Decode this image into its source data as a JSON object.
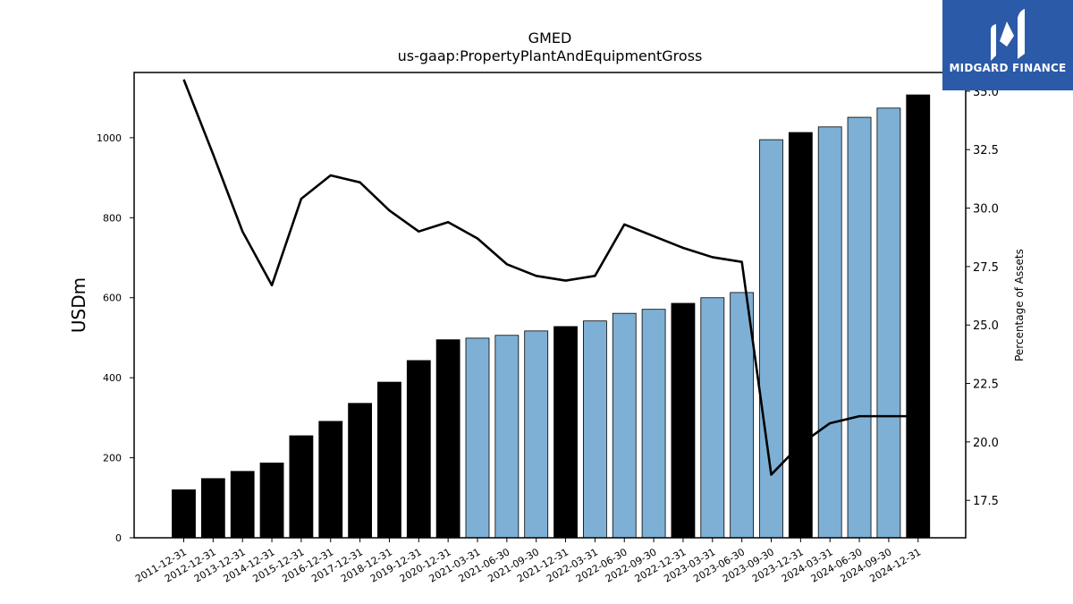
{
  "brand": {
    "name": "MIDGARD FINANCE",
    "bg_color": "#2b5aa8"
  },
  "chart_data": {
    "type": "bar",
    "title": "GMED",
    "subtitle": "us-gaap:PropertyPlantAndEquipmentGross",
    "ylabel": "USDm",
    "ylabel_right": "Percentage of Assets",
    "categories": [
      "2011-12-31",
      "2012-12-31",
      "2013-12-31",
      "2014-12-31",
      "2015-12-31",
      "2016-12-31",
      "2017-12-31",
      "2018-12-31",
      "2019-12-31",
      "2020-12-31",
      "2021-03-31",
      "2021-06-30",
      "2021-09-30",
      "2021-12-31",
      "2022-03-31",
      "2022-06-30",
      "2022-09-30",
      "2022-12-31",
      "2023-03-31",
      "2023-06-30",
      "2023-09-30",
      "2023-12-31",
      "2024-03-31",
      "2024-06-30",
      "2024-09-30",
      "2024-12-31"
    ],
    "series": [
      {
        "kind": "bar",
        "values": [
          120,
          148,
          166,
          187,
          255,
          291,
          336,
          389,
          443,
          495,
          499,
          506,
          517,
          528,
          542,
          561,
          571,
          586,
          600,
          613,
          995,
          1013,
          1027,
          1051,
          1074,
          1107
        ],
        "period": [
          "annual",
          "annual",
          "annual",
          "annual",
          "annual",
          "annual",
          "annual",
          "annual",
          "annual",
          "annual",
          "quarterly",
          "quarterly",
          "quarterly",
          "annual",
          "quarterly",
          "quarterly",
          "quarterly",
          "annual",
          "quarterly",
          "quarterly",
          "quarterly",
          "annual",
          "quarterly",
          "quarterly",
          "quarterly",
          "annual"
        ]
      },
      {
        "kind": "line",
        "axis": "right",
        "values": [
          35.5,
          32.3,
          29.0,
          26.7,
          30.4,
          31.4,
          31.1,
          29.9,
          29.0,
          29.4,
          28.7,
          27.6,
          27.1,
          26.9,
          27.1,
          29.3,
          28.8,
          28.3,
          27.9,
          27.7,
          18.6,
          19.9,
          20.8,
          21.1,
          21.1,
          21.1
        ]
      }
    ],
    "colors": {
      "annual": "#000000",
      "quarterly": "#7eb0d5",
      "line": "#000000"
    },
    "ylim": [
      0,
      1163
    ],
    "y_ticks": [
      0,
      200,
      400,
      600,
      800,
      1000
    ],
    "ylim_right": [
      15.9,
      35.8
    ],
    "y_ticks_right": [
      17.5,
      20.0,
      22.5,
      25.0,
      27.5,
      30.0,
      32.5,
      35.0
    ],
    "grid": false,
    "legend": "none"
  }
}
